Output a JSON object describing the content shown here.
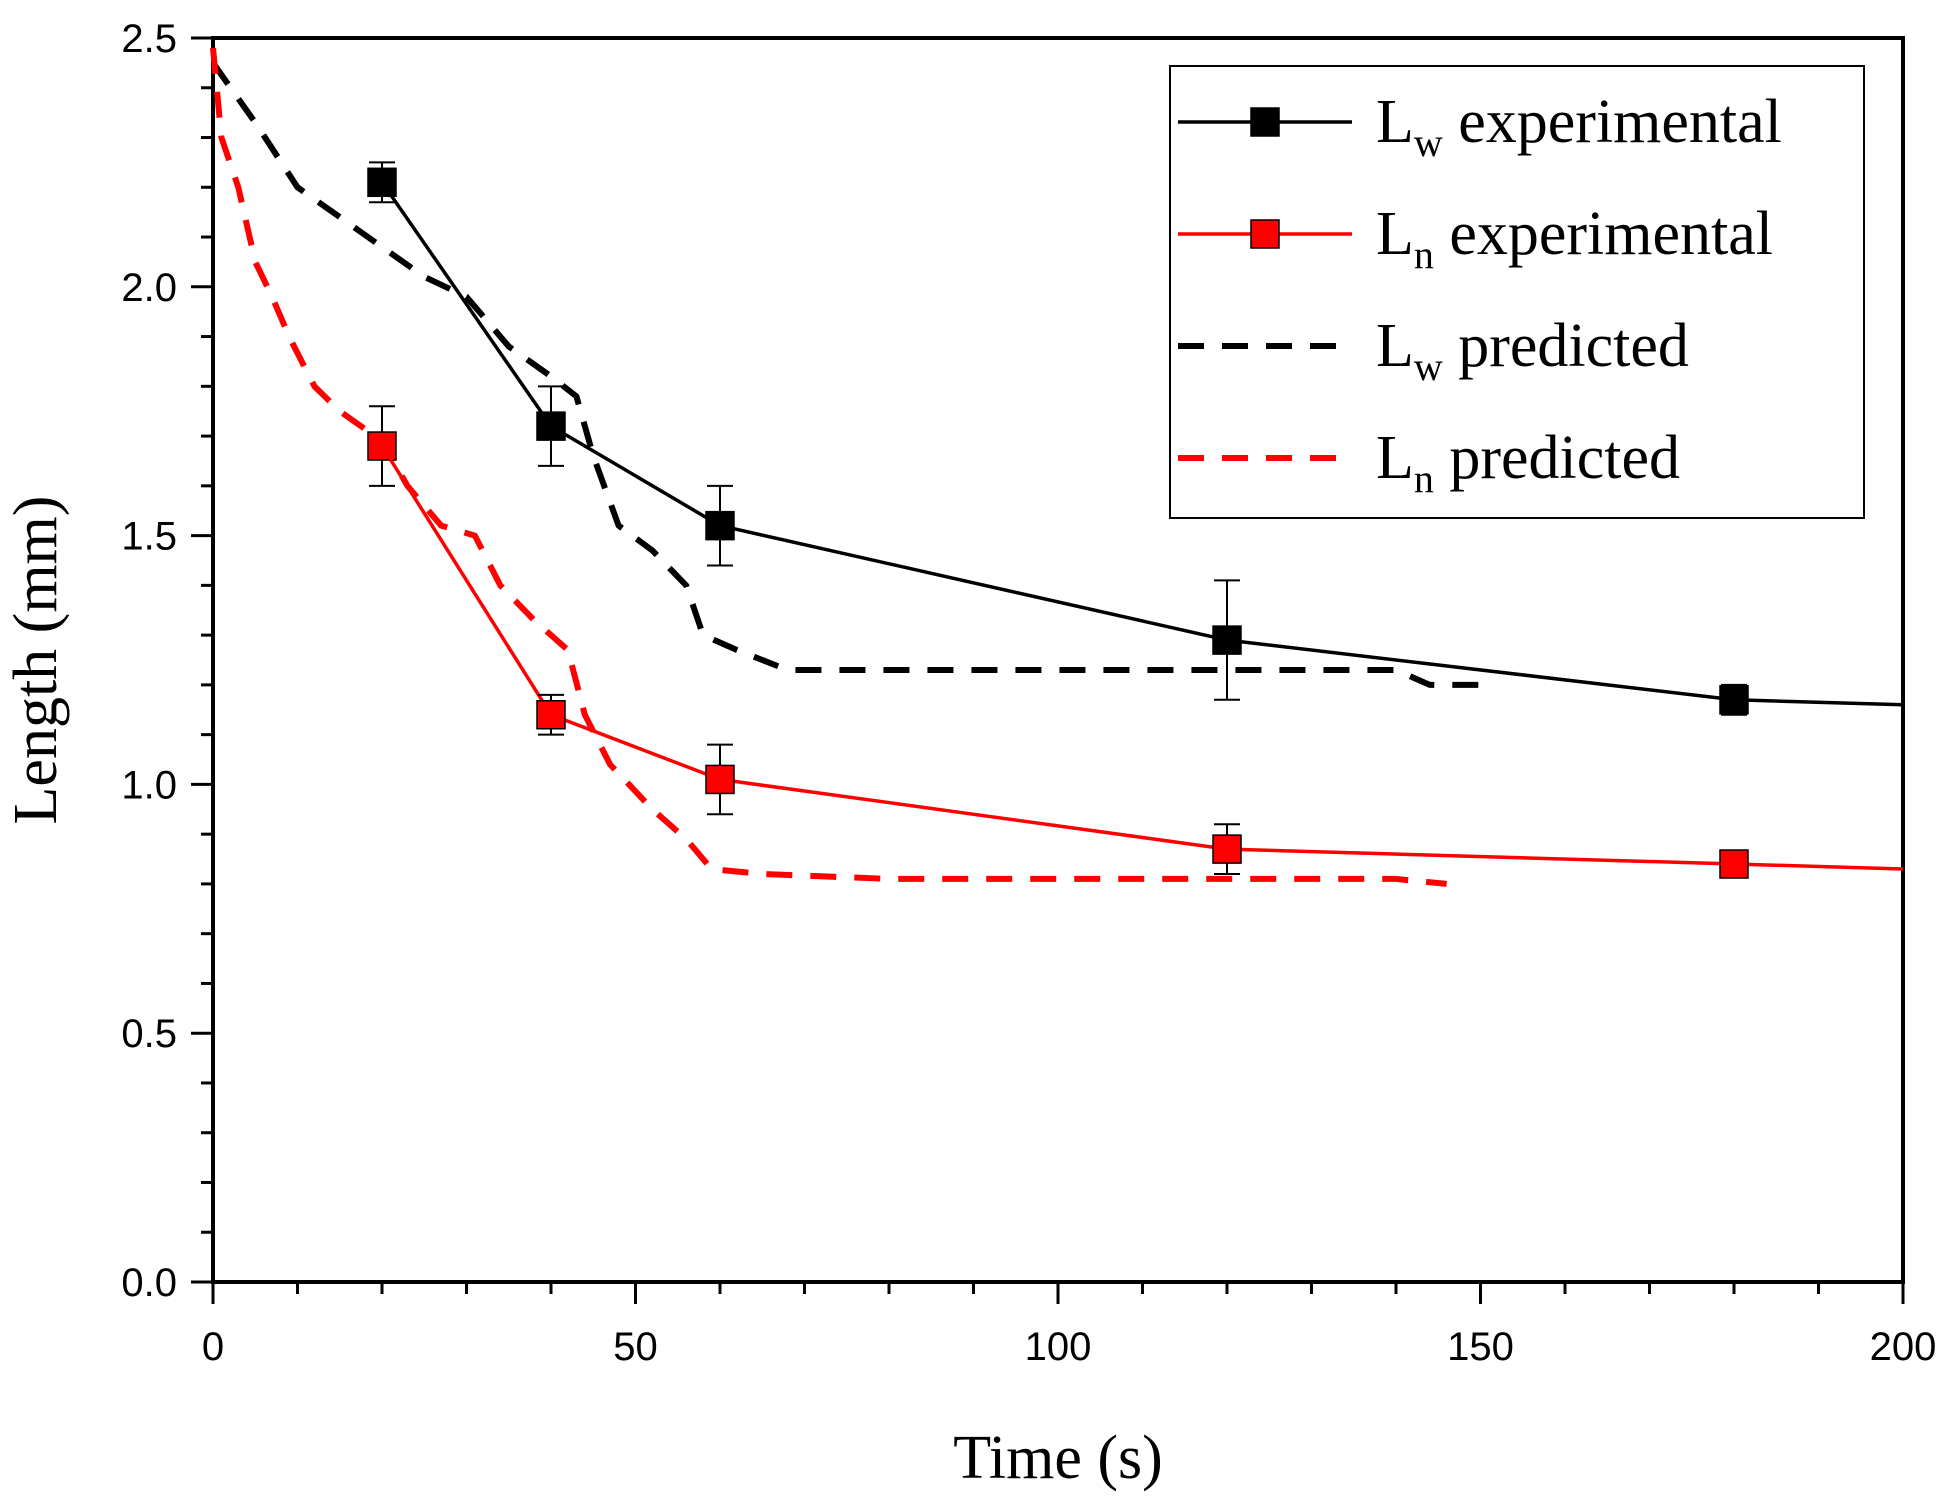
{
  "chart_data": {
    "type": "line",
    "title": "",
    "xlabel": "Time (s)",
    "ylabel": "Length (mm)",
    "xlim": [
      0,
      200
    ],
    "ylim": [
      0,
      2.5
    ],
    "x_ticks": [
      "0",
      "50",
      "100",
      "150",
      "200"
    ],
    "y_ticks": [
      "0.0",
      "0.5",
      "1.0",
      "1.5",
      "2.0",
      "2.5"
    ],
    "grid": false,
    "legend_position": "top-right",
    "series": [
      {
        "name": "Lw experimental",
        "label_main": "L",
        "label_sub": "w",
        "label_rest": " experimental",
        "color": "#000000",
        "style": "solid-square-markers",
        "points": [
          {
            "x": 20,
            "y": 2.21,
            "err": 0.04
          },
          {
            "x": 40,
            "y": 1.72,
            "err": 0.08
          },
          {
            "x": 60,
            "y": 1.52,
            "err": 0.08
          },
          {
            "x": 120,
            "y": 1.29,
            "err": 0.12
          },
          {
            "x": 180,
            "y": 1.17,
            "err": 0.03
          },
          {
            "x": 200,
            "y": 1.16,
            "marker": false
          }
        ]
      },
      {
        "name": "Ln experimental",
        "label_main": "L",
        "label_sub": "n",
        "label_rest": " experimental",
        "color": "#ff0000",
        "style": "solid-square-markers",
        "points": [
          {
            "x": 20,
            "y": 1.68,
            "err": 0.08
          },
          {
            "x": 40,
            "y": 1.14,
            "err": 0.04
          },
          {
            "x": 60,
            "y": 1.01,
            "err": 0.07
          },
          {
            "x": 120,
            "y": 0.87,
            "err": 0.05
          },
          {
            "x": 180,
            "y": 0.84,
            "err": 0.0
          },
          {
            "x": 200,
            "y": 0.83,
            "marker": false
          }
        ]
      },
      {
        "name": "Lw predicted",
        "label_main": "L",
        "label_sub": "w",
        "label_rest": " predicted",
        "color": "#000000",
        "style": "dashed",
        "points": [
          {
            "x": 0,
            "y": 2.45
          },
          {
            "x": 5,
            "y": 2.33
          },
          {
            "x": 10,
            "y": 2.2
          },
          {
            "x": 15,
            "y": 2.14
          },
          {
            "x": 20,
            "y": 2.08
          },
          {
            "x": 25,
            "y": 2.02
          },
          {
            "x": 30,
            "y": 1.98
          },
          {
            "x": 35,
            "y": 1.88
          },
          {
            "x": 40,
            "y": 1.82
          },
          {
            "x": 43,
            "y": 1.78
          },
          {
            "x": 45,
            "y": 1.66
          },
          {
            "x": 48,
            "y": 1.52
          },
          {
            "x": 52,
            "y": 1.47
          },
          {
            "x": 56,
            "y": 1.4
          },
          {
            "x": 58,
            "y": 1.3
          },
          {
            "x": 62,
            "y": 1.27
          },
          {
            "x": 68,
            "y": 1.23
          },
          {
            "x": 80,
            "y": 1.23
          },
          {
            "x": 100,
            "y": 1.23
          },
          {
            "x": 120,
            "y": 1.23
          },
          {
            "x": 140,
            "y": 1.23
          },
          {
            "x": 144,
            "y": 1.2
          },
          {
            "x": 150,
            "y": 1.2
          }
        ]
      },
      {
        "name": "Ln predicted",
        "label_main": "L",
        "label_sub": "n",
        "label_rest": " predicted",
        "color": "#ff0000",
        "style": "dashed",
        "points": [
          {
            "x": 0,
            "y": 2.48
          },
          {
            "x": 1,
            "y": 2.3
          },
          {
            "x": 3,
            "y": 2.2
          },
          {
            "x": 5,
            "y": 2.05
          },
          {
            "x": 7,
            "y": 1.98
          },
          {
            "x": 9,
            "y": 1.9
          },
          {
            "x": 12,
            "y": 1.8
          },
          {
            "x": 15,
            "y": 1.75
          },
          {
            "x": 20,
            "y": 1.69
          },
          {
            "x": 23,
            "y": 1.6
          },
          {
            "x": 27,
            "y": 1.52
          },
          {
            "x": 31,
            "y": 1.5
          },
          {
            "x": 34,
            "y": 1.4
          },
          {
            "x": 38,
            "y": 1.33
          },
          {
            "x": 42,
            "y": 1.27
          },
          {
            "x": 44,
            "y": 1.14
          },
          {
            "x": 47,
            "y": 1.04
          },
          {
            "x": 52,
            "y": 0.95
          },
          {
            "x": 56,
            "y": 0.89
          },
          {
            "x": 59,
            "y": 0.83
          },
          {
            "x": 65,
            "y": 0.82
          },
          {
            "x": 80,
            "y": 0.81
          },
          {
            "x": 100,
            "y": 0.81
          },
          {
            "x": 120,
            "y": 0.81
          },
          {
            "x": 140,
            "y": 0.81
          },
          {
            "x": 146,
            "y": 0.8
          }
        ]
      }
    ]
  },
  "colors": {
    "axis": "#000000",
    "background": "#ffffff"
  }
}
